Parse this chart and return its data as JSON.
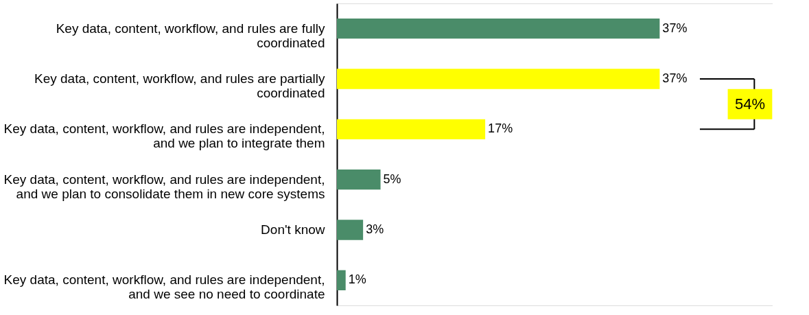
{
  "chart_data": {
    "type": "bar",
    "orientation": "horizontal",
    "categories": [
      "Key data, content, workflow, and rules are fully coordinated",
      "Key data, content, workflow, and rules are partially coordinated",
      "Key data, content, workflow, and rules are independent, and we plan to integrate them",
      "Key data, content, workflow, and rules are independent, and we plan to consolidate them in new core systems",
      "Don't know",
      "Key data, content, workflow, and rules are independent, and we see no need to coordinate"
    ],
    "values": [
      37,
      37,
      17,
      5,
      3,
      1
    ],
    "value_labels": [
      "37%",
      "37%",
      "17%",
      "5%",
      "3%",
      "1%"
    ],
    "colors": [
      "#4a8c69",
      "#ffff00",
      "#ffff00",
      "#4a8c69",
      "#4a8c69",
      "#4a8c69"
    ],
    "annotations": [
      "54%"
    ]
  }
}
